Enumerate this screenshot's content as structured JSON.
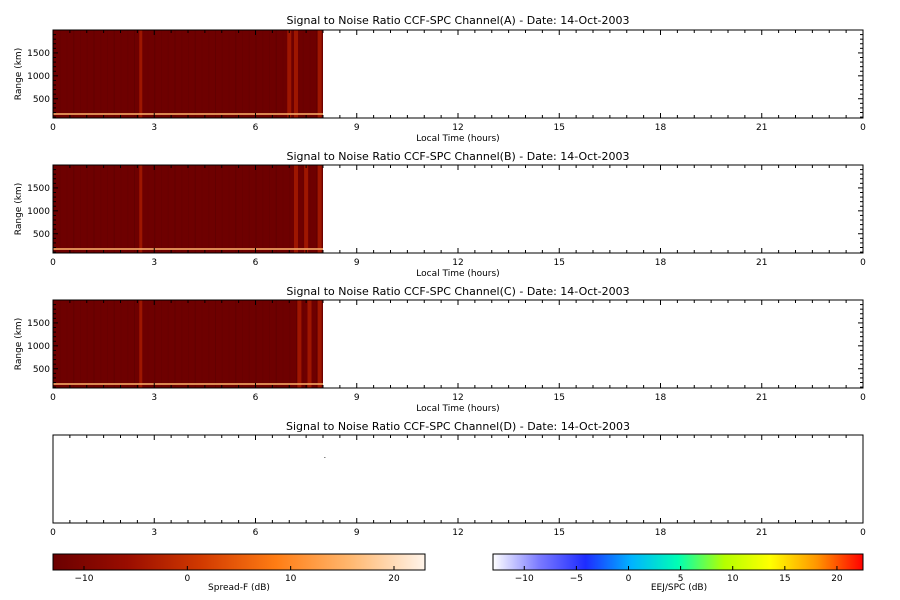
{
  "chart_data": [
    {
      "type": "heatmap",
      "title": "Signal to Noise Ratio CCF-SPC Channel(A) - Date: 14-Oct-2003",
      "xlabel": "Local Time (hours)",
      "ylabel": "Range (km)",
      "xlim": [
        0,
        24
      ],
      "ylim": [
        80,
        2000
      ],
      "xticks": [
        "0",
        "3",
        "6",
        "9",
        "12",
        "15",
        "18",
        "21",
        "0"
      ],
      "yticks": [
        500,
        1000,
        1500
      ],
      "data_extent_hours": [
        0,
        8.0
      ],
      "bright_columns_hours": [
        2.6,
        7.0,
        7.2,
        7.9
      ],
      "colorbar": "Spread-F"
    },
    {
      "type": "heatmap",
      "title": "Signal to Noise Ratio CCF-SPC Channel(B) - Date: 14-Oct-2003",
      "xlabel": "Local Time (hours)",
      "ylabel": "Range (km)",
      "xlim": [
        0,
        24
      ],
      "ylim": [
        80,
        2000
      ],
      "xticks": [
        "0",
        "3",
        "6",
        "9",
        "12",
        "15",
        "18",
        "21",
        "0"
      ],
      "yticks": [
        500,
        1000,
        1500
      ],
      "data_extent_hours": [
        0,
        8.0
      ],
      "bright_columns_hours": [
        2.6,
        7.2,
        7.5,
        7.9
      ],
      "colorbar": "Spread-F"
    },
    {
      "type": "heatmap",
      "title": "Signal to Noise Ratio CCF-SPC Channel(C) - Date: 14-Oct-2003",
      "xlabel": "Local Time (hours)",
      "ylabel": "Range (km)",
      "xlim": [
        0,
        24
      ],
      "ylim": [
        80,
        2000
      ],
      "xticks": [
        "0",
        "3",
        "6",
        "9",
        "12",
        "15",
        "18",
        "21",
        "0"
      ],
      "yticks": [
        500,
        1000,
        1500
      ],
      "data_extent_hours": [
        0,
        8.0
      ],
      "bright_columns_hours": [
        2.6,
        7.3,
        7.6,
        7.9
      ],
      "colorbar": "Spread-F"
    },
    {
      "type": "heatmap",
      "title": "Signal to Noise Ratio CCF-SPC Channel(D) - Date: 14-Oct-2003",
      "xlabel": "",
      "ylabel": "",
      "xlim": [
        0,
        24
      ],
      "ylim": [
        80,
        2000
      ],
      "xticks": [
        "0",
        "3",
        "6",
        "9",
        "12",
        "15",
        "18",
        "21",
        "0"
      ],
      "yticks": [],
      "data_extent_hours": [
        0,
        0
      ],
      "bright_columns_hours": [],
      "colorbar": "EEJ/SPC"
    }
  ],
  "colorbars": [
    {
      "label": "Spread-F (dB)",
      "range": [
        -13,
        23
      ],
      "ticks": [
        -10,
        0,
        10,
        20
      ],
      "stops": [
        "#6b0000",
        "#9a0d00",
        "#d23a00",
        "#ff7d14",
        "#ffb870",
        "#fff4ea"
      ]
    },
    {
      "label": "EEJ/SPC (dB)",
      "range": [
        -13,
        22.5
      ],
      "ticks": [
        -10,
        -5,
        0,
        5,
        10,
        15,
        20
      ],
      "stops": [
        "#ffffff",
        "#7a7aff",
        "#1e2cff",
        "#00b4ff",
        "#00ffb4",
        "#b4ff00",
        "#ffff00",
        "#ff9600",
        "#ff0000"
      ]
    }
  ],
  "colors": {
    "background": "#6e0000",
    "background_alt": "#5c0000",
    "bright_column": "#a31800",
    "low_range_band": "#f0a060"
  }
}
